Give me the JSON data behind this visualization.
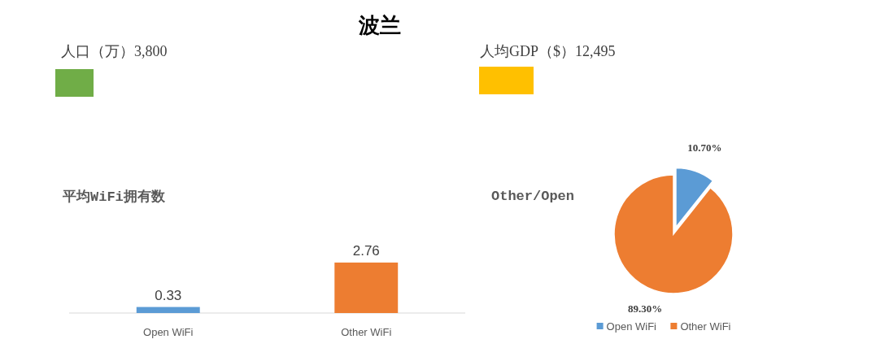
{
  "chart_data": [
    {
      "type": "other",
      "title": "波兰"
    },
    {
      "type": "other",
      "title": "人口（万）3,800",
      "color": "#70ad47"
    },
    {
      "type": "other",
      "title": "人均GDP（$）12,495",
      "color": "#ffc000"
    },
    {
      "type": "bar",
      "title": "平均WiFi拥有数",
      "categories": [
        "Open WiFi",
        "Other WiFi"
      ],
      "values": [
        0.33,
        2.76
      ],
      "colors": [
        "#5b9bd5",
        "#ed7d31"
      ],
      "data_labels": true
    },
    {
      "type": "pie",
      "title": "Other/Open",
      "categories": [
        "Open WiFi",
        "Other WiFi"
      ],
      "values": [
        10.7,
        89.3
      ],
      "colors": [
        "#5b9bd5",
        "#ed7d31"
      ],
      "value_labels": [
        "10.70%",
        "89.30%"
      ],
      "legend": "bottom"
    }
  ]
}
